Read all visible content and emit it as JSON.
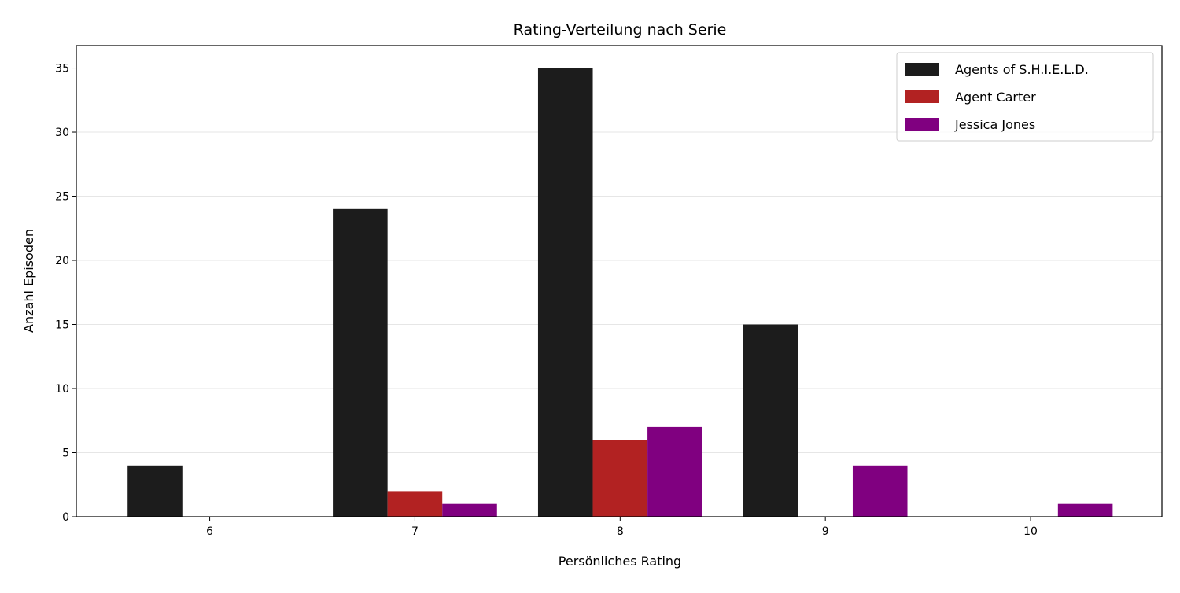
{
  "chart_data": {
    "type": "bar",
    "title": "Rating-Verteilung nach Serie",
    "xlabel": "Persönliches Rating",
    "ylabel": "Anzahl Episoden",
    "categories": [
      "6",
      "7",
      "8",
      "9",
      "10"
    ],
    "series": [
      {
        "name": "Agents of S.H.I.E.L.D.",
        "color": "#1c1c1c",
        "values": [
          4,
          24,
          35,
          15,
          0
        ]
      },
      {
        "name": "Agent Carter",
        "color": "#b22222",
        "values": [
          0,
          2,
          6,
          0,
          0
        ]
      },
      {
        "name": "Jessica Jones",
        "color": "#800080",
        "values": [
          0,
          1,
          7,
          4,
          1
        ]
      }
    ],
    "yticks": [
      0,
      5,
      10,
      15,
      20,
      25,
      30,
      35
    ],
    "ylim": [
      0,
      36.75
    ],
    "xlim": [
      5.35,
      10.64
    ],
    "grid": "horizontal",
    "legend_position": "top-right"
  }
}
